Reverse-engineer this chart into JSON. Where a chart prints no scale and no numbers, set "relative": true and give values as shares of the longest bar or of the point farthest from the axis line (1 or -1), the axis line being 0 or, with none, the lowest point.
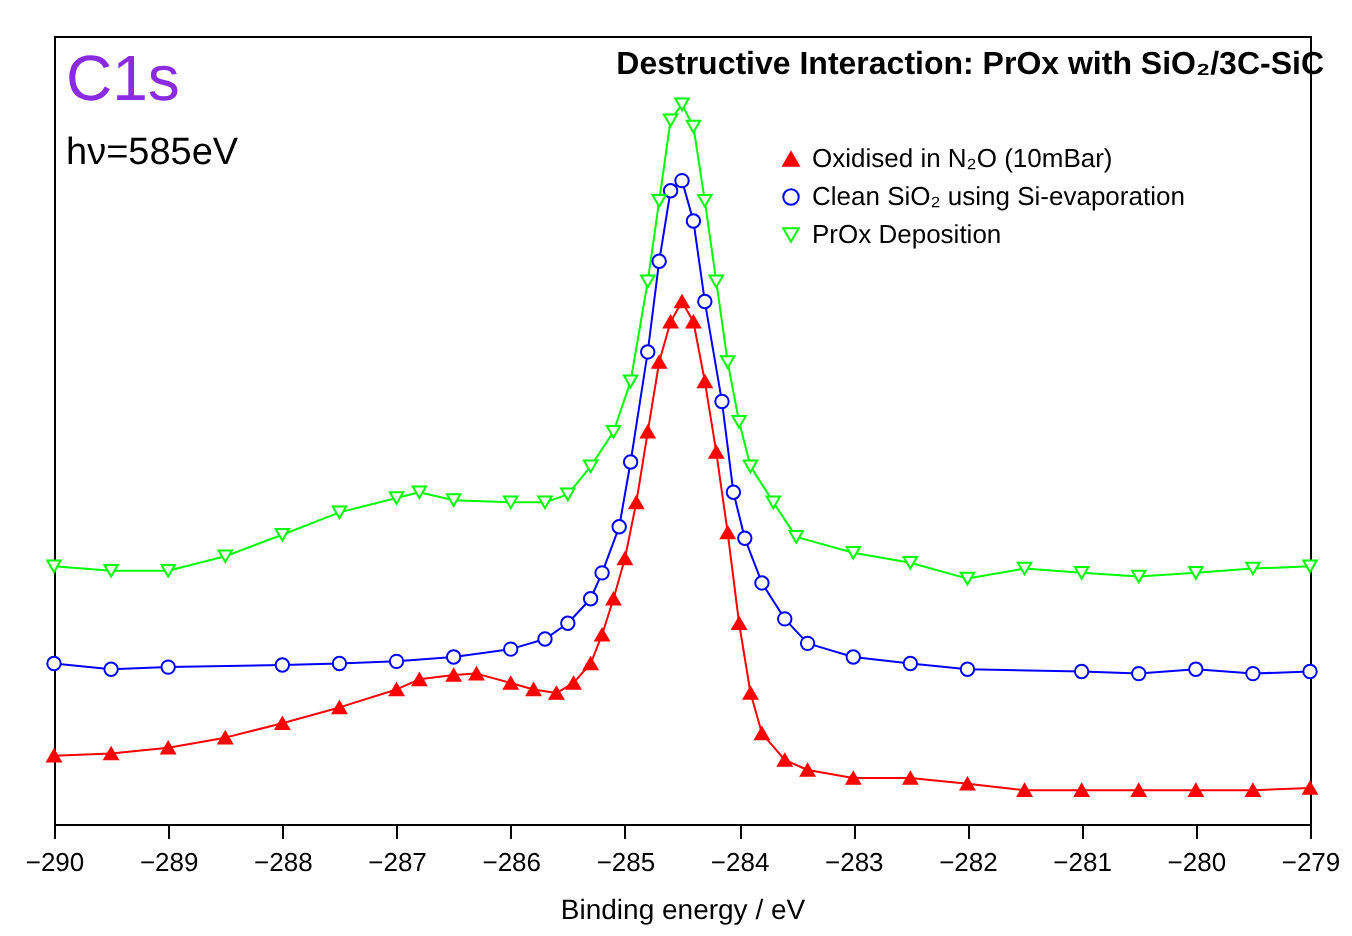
{
  "chart_data": {
    "type": "line",
    "title": "Destructive Interaction: PrOx with SiO₂/3C-SiC",
    "xlabel": "Binding energy / eV",
    "annotations": [
      "C1s",
      "hν=585eV"
    ],
    "relative": true,
    "xlim": [
      -290,
      -279
    ],
    "xticks": [
      -290,
      -289,
      -288,
      -287,
      -286,
      -285,
      -284,
      -283,
      -282,
      -281,
      -280,
      -279
    ],
    "grid": false,
    "legend": "top right",
    "line_style": "solid",
    "series": [
      {
        "name": "Oxidised in N₂O (10mBar)",
        "color": "#ff0000",
        "marker": "triangle",
        "x": [
          -290,
          -289.5,
          -289,
          -288.5,
          -288,
          -287.5,
          -287,
          -286.8,
          -286.5,
          -286.3,
          -286,
          -285.8,
          -285.6,
          -285.45,
          -285.3,
          -285.2,
          -285.1,
          -285,
          -284.9,
          -284.8,
          -284.7,
          -284.6,
          -284.5,
          -284.4,
          -284.3,
          -284.2,
          -284.1,
          -284,
          -283.9,
          -283.8,
          -283.6,
          -283.4,
          -283,
          -282.5,
          -282,
          -281.5,
          -281,
          -280.5,
          -280,
          -279.5,
          -279
        ],
        "values": [
          0.095,
          0.098,
          0.106,
          0.12,
          0.14,
          0.162,
          0.187,
          0.201,
          0.207,
          0.209,
          0.196,
          0.187,
          0.182,
          0.196,
          0.223,
          0.263,
          0.313,
          0.369,
          0.447,
          0.545,
          0.642,
          0.698,
          0.726,
          0.698,
          0.615,
          0.517,
          0.405,
          0.279,
          0.182,
          0.126,
          0.089,
          0.075,
          0.064,
          0.064,
          0.056,
          0.047,
          0.047,
          0.047,
          0.047,
          0.047,
          0.05
        ]
      },
      {
        "name": "Clean SiO₂ using Si-evaporation",
        "color": "#0000ff",
        "marker": "circle",
        "x": [
          -290,
          -289.5,
          -289,
          -288,
          -287.5,
          -287,
          -286.5,
          -286,
          -285.7,
          -285.5,
          -285.3,
          -285.2,
          -285.05,
          -284.95,
          -284.8,
          -284.7,
          -284.6,
          -284.5,
          -284.4,
          -284.3,
          -284.15,
          -284.05,
          -283.95,
          -283.8,
          -283.6,
          -283.4,
          -283,
          -282.5,
          -282,
          -281,
          -280.5,
          -280,
          -279.5,
          -279
        ],
        "values": [
          0.223,
          0.215,
          0.218,
          0.221,
          0.223,
          0.226,
          0.232,
          0.243,
          0.257,
          0.279,
          0.313,
          0.349,
          0.413,
          0.503,
          0.656,
          0.782,
          0.88,
          0.894,
          0.838,
          0.726,
          0.587,
          0.461,
          0.397,
          0.335,
          0.285,
          0.251,
          0.232,
          0.223,
          0.215,
          0.212,
          0.209,
          0.215,
          0.209,
          0.212
        ]
      },
      {
        "name": "PrOx Deposition",
        "color": "#00ff00",
        "marker": "triangle-down",
        "x": [
          -290,
          -289.5,
          -289,
          -288.5,
          -288,
          -287.5,
          -287,
          -286.8,
          -286.5,
          -286,
          -285.7,
          -285.5,
          -285.3,
          -285.1,
          -284.95,
          -284.8,
          -284.7,
          -284.6,
          -284.5,
          -284.4,
          -284.3,
          -284.2,
          -284.1,
          -284,
          -283.9,
          -283.7,
          -283.5,
          -283,
          -282.5,
          -282,
          -281.5,
          -281,
          -280.5,
          -280,
          -279.5,
          -279
        ],
        "values": [
          0.358,
          0.352,
          0.352,
          0.372,
          0.402,
          0.433,
          0.453,
          0.461,
          0.45,
          0.447,
          0.447,
          0.458,
          0.497,
          0.545,
          0.615,
          0.754,
          0.866,
          0.978,
          1,
          0.969,
          0.866,
          0.754,
          0.642,
          0.559,
          0.497,
          0.447,
          0.399,
          0.377,
          0.363,
          0.341,
          0.355,
          0.349,
          0.344,
          0.349,
          0.355,
          0.358
        ]
      }
    ]
  }
}
